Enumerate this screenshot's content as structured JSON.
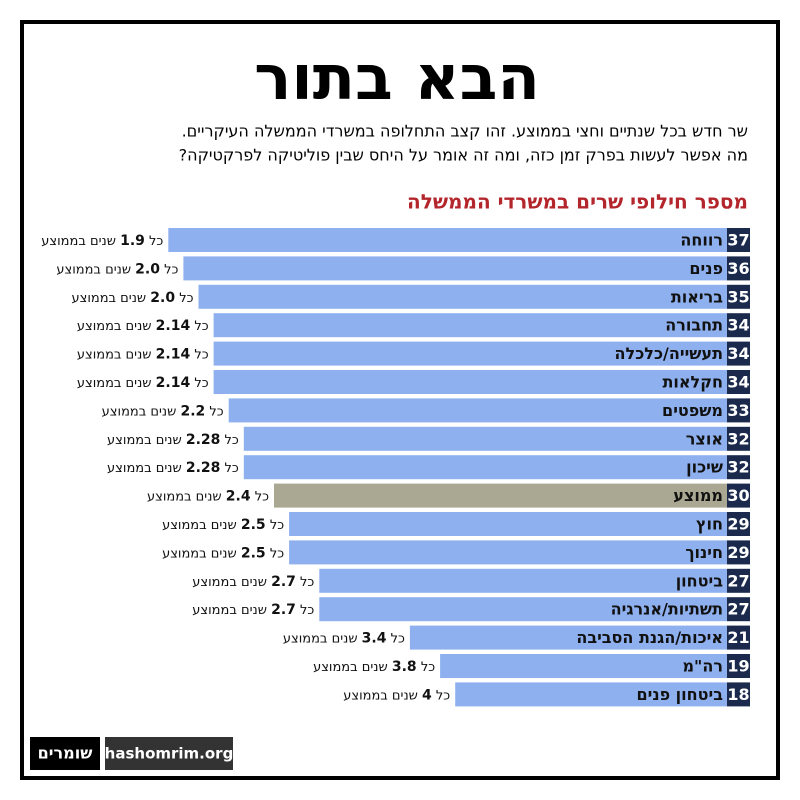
{
  "chart_data": {
    "type": "bar",
    "title": "הבא בתור",
    "subtitle": [
      "שר חדש בכל שנתיים וחצי בממוצע. זהו קצב התחלופה במשרדי הממשלה העיקריים.",
      "מה אפשר לעשות בפרק זמן כזה, ומה זה אומר על היחס שבין פוליטיקה לפרקטיקה?"
    ],
    "chart_title": "מספר חילופי שרים במשרדי הממשלה",
    "categories": [
      "רווחה",
      "פנים",
      "בריאות",
      "תחבורה",
      "תעשייה/כלכלה",
      "חקלאות",
      "משפטים",
      "אוצר",
      "שיכון",
      "ממוצע",
      "חוץ",
      "חינוך",
      "ביטחון",
      "תשתיות/אנרגיה",
      "איכות/הגנת הסביבה",
      "רה\"מ",
      "ביטחון פנים"
    ],
    "values": [
      37,
      36,
      35,
      34,
      34,
      34,
      33,
      32,
      32,
      30,
      29,
      29,
      27,
      27,
      21,
      19,
      18
    ],
    "colors": [
      "#8fb0ee",
      "#8fb0ee",
      "#8fb0ee",
      "#8fb0ee",
      "#8fb0ee",
      "#8fb0ee",
      "#8fb0ee",
      "#8fb0ee",
      "#8fb0ee",
      "#aaa892",
      "#8fb0ee",
      "#8fb0ee",
      "#8fb0ee",
      "#8fb0ee",
      "#8fb0ee",
      "#8fb0ee",
      "#8fb0ee"
    ],
    "years": [
      "1.9",
      "2.0",
      "2.0",
      "2.14",
      "2.14",
      "2.14",
      "2.2",
      "2.28",
      "2.28",
      "2.4",
      "2.5",
      "2.5",
      "2.7",
      "2.7",
      "3.4",
      "3.8",
      "4"
    ],
    "years_prefix": "כל",
    "years_suffix": "שנים בממוצע"
  },
  "footer": {
    "logo": "שומרים",
    "site": "hashomrim.org"
  }
}
